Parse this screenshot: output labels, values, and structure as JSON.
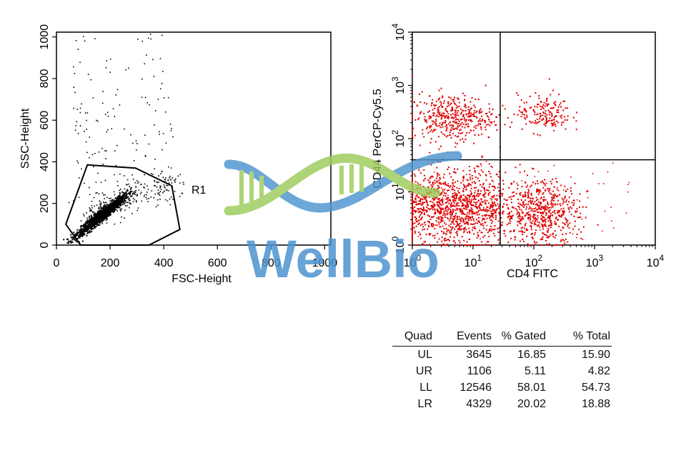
{
  "chart_data": [
    {
      "type": "scatter",
      "title": "",
      "xlabel": "FSC-Height",
      "ylabel": "SSC-Height",
      "xlim": [
        0,
        1023
      ],
      "ylim": [
        0,
        1023
      ],
      "x_ticks": [
        "0",
        "200",
        "400",
        "600",
        "800",
        "1000"
      ],
      "y_ticks": [
        "0",
        "200",
        "400",
        "600",
        "800",
        "1000"
      ],
      "x_tick_values": [
        0,
        200,
        400,
        600,
        800,
        1000
      ],
      "y_tick_values": [
        0,
        200,
        400,
        600,
        800,
        1000
      ],
      "point_color": "#000000",
      "gate": {
        "name": "R1",
        "polygon": [
          [
            35,
            100
          ],
          [
            115,
            385
          ],
          [
            295,
            370
          ],
          [
            430,
            285
          ],
          [
            460,
            75
          ],
          [
            345,
            0
          ],
          [
            90,
            0
          ]
        ]
      },
      "population": {
        "center": [
          165,
          145
        ],
        "spread": [
          55,
          55
        ],
        "sparse_region": {
          "x": [
            60,
            600
          ],
          "y": [
            200,
            1023
          ]
        }
      }
    },
    {
      "type": "scatter",
      "title": "",
      "xlabel": "CD4 FITC",
      "ylabel": "CD44 PerCP-Cy5.5",
      "x_scale": "log",
      "y_scale": "log",
      "xlim": [
        1,
        10000
      ],
      "ylim": [
        1,
        10000
      ],
      "x_ticks": [
        {
          "base": "10",
          "exp": "0"
        },
        {
          "base": "10",
          "exp": "1"
        },
        {
          "base": "10",
          "exp": "2"
        },
        {
          "base": "10",
          "exp": "3"
        },
        {
          "base": "10",
          "exp": "4"
        }
      ],
      "y_ticks": [
        {
          "base": "10",
          "exp": "0"
        },
        {
          "base": "10",
          "exp": "1"
        },
        {
          "base": "10",
          "exp": "2"
        },
        {
          "base": "10",
          "exp": "3"
        },
        {
          "base": "10",
          "exp": "4"
        }
      ],
      "tick_values": [
        1,
        10,
        100,
        1000,
        10000
      ],
      "point_color": "#e00000",
      "quadrant_lines": {
        "x": 28,
        "y": 40
      },
      "populations": [
        {
          "quadrant": "UL",
          "center": [
            4.5,
            250
          ],
          "spread_decades": [
            0.35,
            0.22
          ]
        },
        {
          "quadrant": "UR",
          "center": [
            150,
            300
          ],
          "spread_decades": [
            0.22,
            0.18
          ]
        },
        {
          "quadrant": "LL",
          "center": [
            5,
            5
          ],
          "spread_decades": [
            0.55,
            0.35
          ]
        },
        {
          "quadrant": "LR",
          "center": [
            140,
            4
          ],
          "spread_decades": [
            0.3,
            0.3
          ]
        }
      ]
    }
  ],
  "gate_label": "R1",
  "stats_table": {
    "headers": [
      "Quad",
      "Events",
      "% Gated",
      "% Total"
    ],
    "rows": [
      [
        "UL",
        "3645",
        "16.85",
        "15.90"
      ],
      [
        "UR",
        "1106",
        "5.11",
        "4.82"
      ],
      [
        "LL",
        "12546",
        "58.01",
        "54.73"
      ],
      [
        "LR",
        "4329",
        "20.02",
        "18.88"
      ]
    ]
  },
  "watermark": {
    "text": "WellBio",
    "colors": {
      "blue": "#4d94d0",
      "green": "#9ccb5a"
    }
  }
}
